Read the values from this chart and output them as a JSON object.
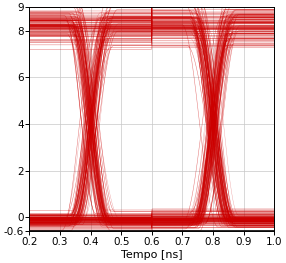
{
  "xlim": [
    0.2,
    1.0
  ],
  "ylim": [
    -0.6,
    9.0
  ],
  "xlabel": "Tempo [ns]",
  "xticks": [
    0.2,
    0.3,
    0.4,
    0.5,
    0.6,
    0.7,
    0.8,
    0.9,
    1.0
  ],
  "yticks": [
    -0.6,
    0,
    2,
    4,
    6,
    8,
    9
  ],
  "ytick_labels": [
    "-0.6",
    "0",
    "2",
    "4",
    "6",
    "8",
    "9"
  ],
  "line_color": "#cc0000",
  "background_color": "#ffffff",
  "grid_color": "#c8c8c8",
  "bit_period": 0.4,
  "num_traces": 200,
  "high_level": 8.3,
  "low_level": -0.15,
  "high_spread": 0.5,
  "low_spread": 0.18,
  "linewidth": 0.35,
  "alpha": 0.55,
  "figwidth": 2.86,
  "figheight": 2.63,
  "dpi": 100,
  "xlabel_fontsize": 8,
  "tick_labelsize": 7.5
}
